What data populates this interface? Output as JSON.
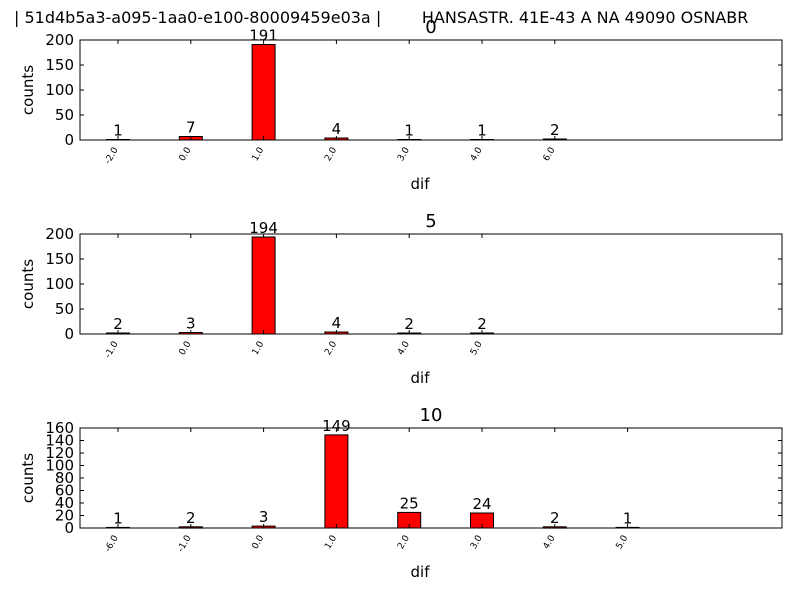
{
  "suptitle": "| 51d4b5a3-a095-1aa0-e100-80009459e03a |        HANSASTR. 41E-43 A NA 49090 OSNABR",
  "colors": {
    "bar": "#ff0000",
    "edge": "#000000"
  },
  "chart_data": [
    {
      "type": "bar",
      "title": "0",
      "xlabel": "dif",
      "ylabel": "counts",
      "ylim": [
        0,
        200
      ],
      "yticks": [
        0,
        50,
        100,
        150,
        200
      ],
      "categories": [
        "-2.0",
        "0.0",
        "1.0",
        "2.0",
        "3.0",
        "4.0",
        "6.0"
      ],
      "values": [
        1,
        7,
        191,
        4,
        1,
        1,
        2
      ],
      "bar_labels": [
        "1",
        "7",
        "191",
        "4",
        "1",
        "1",
        "2"
      ],
      "grid": false
    },
    {
      "type": "bar",
      "title": "5",
      "xlabel": "dif",
      "ylabel": "counts",
      "ylim": [
        0,
        200
      ],
      "yticks": [
        0,
        50,
        100,
        150,
        200
      ],
      "categories": [
        "-1.0",
        "0.0",
        "1.0",
        "2.0",
        "4.0",
        "5.0"
      ],
      "values": [
        2,
        3,
        194,
        4,
        2,
        2
      ],
      "bar_labels": [
        "2",
        "3",
        "194",
        "4",
        "2",
        "2"
      ],
      "grid": false
    },
    {
      "type": "bar",
      "title": "10",
      "xlabel": "dif",
      "ylabel": "counts",
      "ylim": [
        0,
        160
      ],
      "yticks": [
        0,
        20,
        40,
        60,
        80,
        100,
        120,
        140,
        160
      ],
      "categories": [
        "-6.0",
        "-1.0",
        "0.0",
        "1.0",
        "2.0",
        "3.0",
        "4.0",
        "5.0"
      ],
      "values": [
        1,
        2,
        3,
        149,
        25,
        24,
        2,
        1
      ],
      "bar_labels": [
        "1",
        "2",
        "3",
        "149",
        "25",
        "24",
        "2",
        "1"
      ],
      "grid": false
    }
  ]
}
